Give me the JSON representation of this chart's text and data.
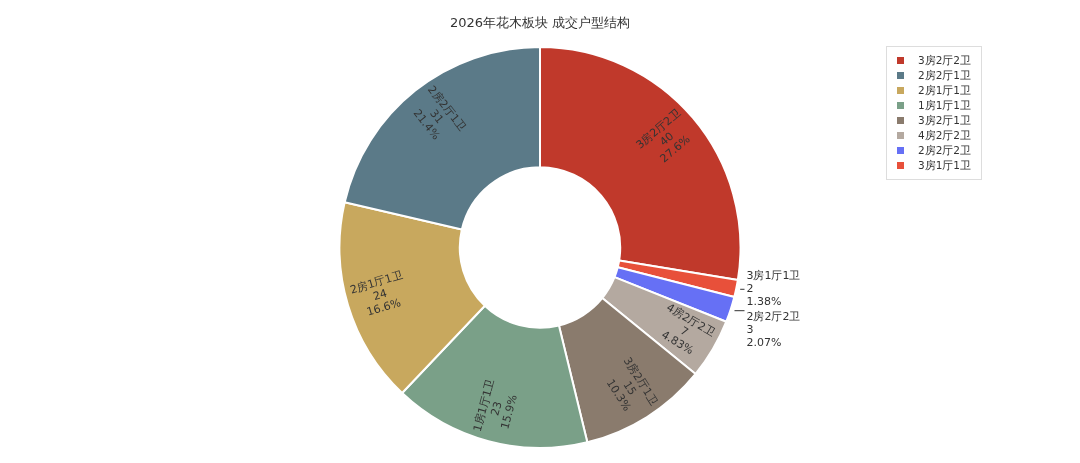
{
  "chart_data": {
    "type": "donut",
    "title": "2026年花木板块  成交户型结构",
    "categories": [
      "3房2厅2卫",
      "2房2厅1卫",
      "2房1厅1卫",
      "1房1厅1卫",
      "3房2厅1卫",
      "4房2厅2卫",
      "2房2厅2卫",
      "3房1厅1卫"
    ],
    "values": [
      40,
      31,
      24,
      23,
      15,
      7,
      3,
      2
    ],
    "colors": [
      "#c0392b",
      "#5b7a88",
      "#c8a85e",
      "#7aa088",
      "#8a7b6d",
      "#b4a9a0",
      "#6670f5",
      "#e8503a"
    ],
    "value_labels": [
      "40\n27.6%",
      "31\n21.4%",
      "24\n16.6%",
      "23\n15.9%",
      "15\n10.3%",
      "7\n4.83%",
      "3\n2.07%",
      "2\n1.38%"
    ],
    "legend": "top right"
  }
}
